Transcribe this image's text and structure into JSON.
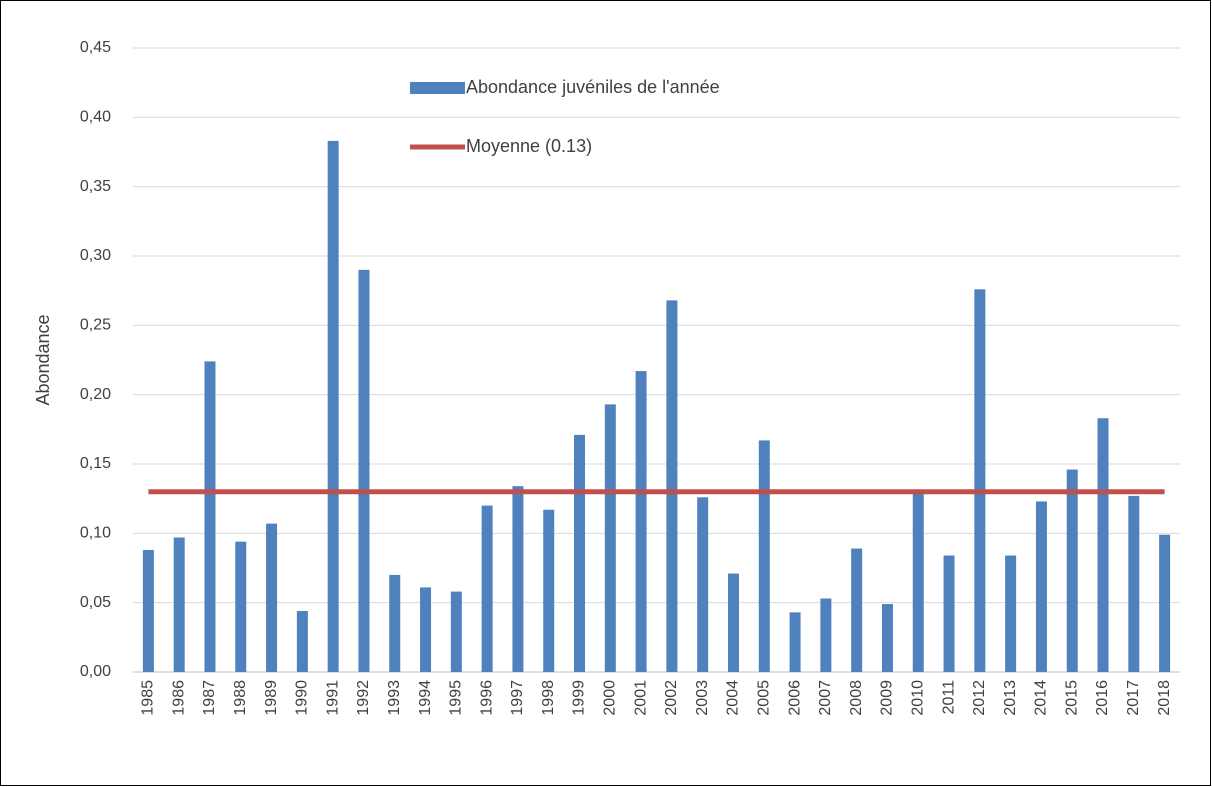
{
  "chart_data": {
    "type": "bar",
    "y_label": "Abondance",
    "categories": [
      "1985",
      "1986",
      "1987",
      "1988",
      "1989",
      "1990",
      "1991",
      "1992",
      "1993",
      "1994",
      "1995",
      "1996",
      "1997",
      "1998",
      "1999",
      "2000",
      "2001",
      "2002",
      "2003",
      "2004",
      "2005",
      "2006",
      "2007",
      "2008",
      "2009",
      "2010",
      "2011",
      "2012",
      "2013",
      "2014",
      "2015",
      "2016",
      "2017",
      "2018"
    ],
    "series": [
      {
        "name": "Abondance juvéniles de l'année",
        "type": "bar",
        "color": "#4f81bd",
        "values": [
          0.088,
          0.097,
          0.224,
          0.094,
          0.107,
          0.044,
          0.383,
          0.29,
          0.07,
          0.061,
          0.058,
          0.12,
          0.134,
          0.117,
          0.171,
          0.193,
          0.217,
          0.268,
          0.126,
          0.071,
          0.167,
          0.043,
          0.053,
          0.089,
          0.049,
          0.13,
          0.084,
          0.276,
          0.084,
          0.123,
          0.146,
          0.183,
          0.127,
          0.099
        ]
      },
      {
        "name": "Moyenne (0.13)",
        "type": "line",
        "color": "#c0504d",
        "values": [
          0.13,
          0.13,
          0.13,
          0.13,
          0.13,
          0.13,
          0.13,
          0.13,
          0.13,
          0.13,
          0.13,
          0.13,
          0.13,
          0.13,
          0.13,
          0.13,
          0.13,
          0.13,
          0.13,
          0.13,
          0.13,
          0.13,
          0.13,
          0.13,
          0.13,
          0.13,
          0.13,
          0.13,
          0.13,
          0.13,
          0.13,
          0.13,
          0.13,
          0.13
        ]
      }
    ],
    "ylim": [
      0,
      0.45
    ],
    "yticks": [
      {
        "value": 0,
        "label": "0,00"
      },
      {
        "value": 0.05,
        "label": "0,05"
      },
      {
        "value": 0.1,
        "label": "0,10"
      },
      {
        "value": 0.15,
        "label": "0,15"
      },
      {
        "value": 0.2,
        "label": "0,20"
      },
      {
        "value": 0.25,
        "label": "0,25"
      },
      {
        "value": 0.3,
        "label": "0,30"
      },
      {
        "value": 0.35,
        "label": "0,35"
      },
      {
        "value": 0.4,
        "label": "0,40"
      },
      {
        "value": 0.45,
        "label": "0,45"
      }
    ],
    "grid": true
  }
}
